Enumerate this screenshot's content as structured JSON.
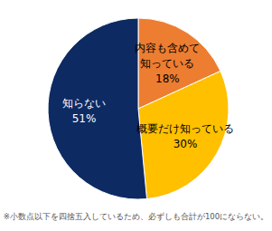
{
  "chart_data": {
    "type": "pie",
    "categories": [
      "内容も含めて知っている",
      "概要だけ知っている",
      "知らない"
    ],
    "values": [
      18,
      30,
      51
    ],
    "value_labels": [
      "18%",
      "30%",
      "51%"
    ],
    "colors": [
      "#ed7d31",
      "#ffc000",
      "#0d2a63"
    ],
    "data_labels": true,
    "annotations": [
      "※小数点以下を四捨五入しているため、必ずしも合計が100にならない。"
    ]
  }
}
